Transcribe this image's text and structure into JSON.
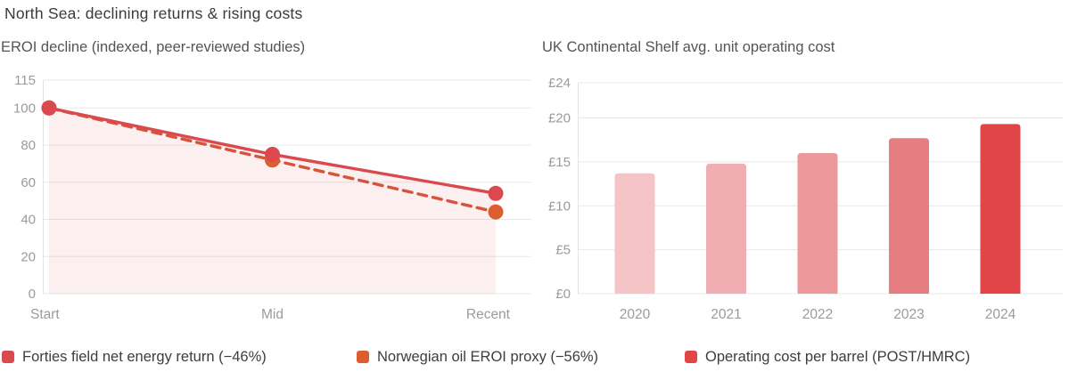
{
  "page": {
    "title": "North Sea: declining returns & rising costs"
  },
  "chart_data": [
    {
      "type": "line",
      "title": "EROI decline (indexed, peer-reviewed studies)",
      "categories": [
        "Start",
        "Mid",
        "Recent"
      ],
      "series": [
        {
          "key": "forties",
          "name": "Forties field net energy return (−46%)",
          "values": [
            100,
            75,
            54
          ],
          "line_style": "solid",
          "color": "#d9494d",
          "marker_color": "#d9494d",
          "area_fill": "rgba(216,74,78,0.09)"
        },
        {
          "key": "norwegian",
          "name": "Norwegian oil EROI proxy (−56%)",
          "values": [
            100,
            72,
            44
          ],
          "line_style": "dashed",
          "color": "#d5543b",
          "marker_color": "#dc5e2e"
        }
      ],
      "y_ticks": [
        0,
        20,
        40,
        60,
        80,
        100,
        115
      ],
      "ylim": [
        0,
        115
      ],
      "grid": true,
      "legend_position": "bottom"
    },
    {
      "type": "bar",
      "title": "UK Continental Shelf avg. unit operating cost",
      "series_name": "Operating cost per barrel (POST/HMRC)",
      "categories": [
        "2020",
        "2021",
        "2022",
        "2023",
        "2024"
      ],
      "values": [
        13.7,
        14.8,
        16.0,
        17.7,
        19.3
      ],
      "y_ticks": [
        0,
        5,
        10,
        15,
        20,
        24
      ],
      "y_tick_prefix": "£",
      "ylim": [
        0,
        24
      ],
      "grid": true,
      "bar_colors": [
        "#f4c4c7",
        "#f1aeb2",
        "#ec989b",
        "#e67d80",
        "#e24548"
      ]
    }
  ],
  "legend": {
    "items": [
      {
        "label": "Forties field net energy return (−46%)",
        "color": "#d9494d"
      },
      {
        "label": "Norwegian oil EROI proxy (−56%)",
        "color": "#dc5e2e"
      },
      {
        "label": "Operating cost per barrel (POST/HMRC)",
        "color": "#e24548"
      }
    ]
  },
  "colors": {
    "background": "#ffffff",
    "grid": "#e8e8e8",
    "axis_line": "#e3e3e3",
    "axis_text": "#9b9b9b",
    "title_text": "#3a3a3a",
    "subtitle_text": "#545454",
    "legend_text": "#3d3d3d"
  }
}
